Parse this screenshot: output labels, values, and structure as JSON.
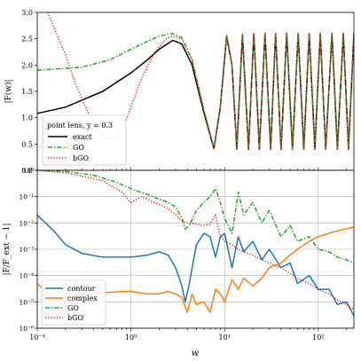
{
  "chart_data": [
    {
      "type": "line",
      "panel": "top",
      "xlabel": "",
      "ylabel": "|F(w)|",
      "x_scale": "log",
      "xlim": [
        0.1,
        240
      ],
      "ylim": [
        0.0,
        3.0
      ],
      "y_ticks": [
        0.0,
        0.5,
        1.0,
        1.5,
        2.0,
        2.5,
        3.0
      ],
      "y_tick_labels": [
        "0.0",
        "0.5",
        "1.0",
        "1.5",
        "2.0",
        "2.5",
        "3.0"
      ],
      "grid": false,
      "legend": {
        "title": "point lens,     y = 0.3",
        "placement": "bottom-left"
      },
      "series": [
        {
          "name": "exact",
          "color": "#000000",
          "style": "solid",
          "x": [
            0.1,
            0.2,
            0.5,
            1.0,
            1.5,
            2.0,
            2.8,
            3.5,
            4.5,
            6.0,
            7.7,
            9.0,
            10.5,
            12.0,
            13.5,
            15.5,
            18.0,
            20.5,
            23.5,
            27.0,
            31.0,
            35.0,
            40.0,
            46.0,
            53.0,
            61.0,
            70.0,
            80.0,
            92.0,
            105.0,
            120.0,
            140.0,
            160.0,
            185.0,
            210.0,
            240.0
          ],
          "y": [
            1.08,
            1.2,
            1.5,
            1.85,
            2.1,
            2.3,
            2.47,
            2.4,
            2.0,
            1.1,
            0.41,
            1.2,
            2.55,
            2.0,
            0.4,
            2.58,
            0.4,
            2.6,
            0.4,
            2.6,
            0.4,
            2.6,
            0.4,
            2.6,
            0.4,
            2.6,
            0.4,
            2.6,
            0.4,
            2.6,
            0.4,
            2.6,
            0.4,
            2.6,
            0.4,
            2.6
          ]
        },
        {
          "name": "GO",
          "color": "#2ca02c",
          "style": "dashdot",
          "x": [
            0.1,
            0.3,
            0.6,
            1.0,
            1.5,
            2.0,
            2.8,
            3.5,
            4.5,
            6.0,
            7.7,
            9.0,
            10.5,
            12.0,
            13.5,
            15.5,
            18.0,
            20.5,
            23.5,
            27.0,
            31.0,
            35.0,
            40.0,
            46.0,
            53.0,
            61.0,
            70.0,
            80.0,
            92.0,
            105.0,
            120.0,
            140.0,
            160.0,
            185.0,
            210.0,
            240.0
          ],
          "y": [
            1.9,
            1.96,
            2.1,
            2.3,
            2.45,
            2.55,
            2.6,
            2.52,
            2.1,
            1.15,
            0.42,
            1.22,
            2.56,
            2.0,
            0.4,
            2.58,
            0.4,
            2.6,
            0.4,
            2.6,
            0.4,
            2.6,
            0.4,
            2.6,
            0.4,
            2.6,
            0.4,
            2.6,
            0.4,
            2.6,
            0.4,
            2.6,
            0.4,
            2.6,
            0.4,
            2.6
          ]
        },
        {
          "name": "bGO",
          "color": "#d62728",
          "style": "dotted",
          "x": [
            0.13,
            0.16,
            0.2,
            0.25,
            0.3,
            0.37,
            0.45,
            0.55,
            0.7,
            0.85,
            1.0,
            1.3,
            1.8,
            2.4,
            2.8,
            3.5,
            4.5,
            6.0,
            7.7,
            9.0,
            10.5,
            12.0,
            13.5,
            15.5,
            18.0,
            20.5,
            23.5,
            27.0,
            31.0,
            35.0,
            40.0,
            46.0,
            53.0,
            61.0,
            70.0,
            80.0,
            92.0,
            105.0,
            120.0,
            140.0,
            160.0,
            185.0,
            210.0,
            240.0
          ],
          "y": [
            3.0,
            2.6,
            2.2,
            1.7,
            1.35,
            1.0,
            0.75,
            0.6,
            0.62,
            0.85,
            1.2,
            1.75,
            2.25,
            2.5,
            2.55,
            2.5,
            2.1,
            1.15,
            0.42,
            1.22,
            2.56,
            2.0,
            0.4,
            2.58,
            0.4,
            2.6,
            0.4,
            2.6,
            0.4,
            2.6,
            0.4,
            2.6,
            0.4,
            2.6,
            0.4,
            2.6,
            0.4,
            2.6,
            0.4,
            2.6,
            0.4,
            2.6,
            0.4,
            2.6
          ]
        }
      ]
    },
    {
      "type": "line",
      "panel": "bottom",
      "xlabel": "w",
      "ylabel": "|F/F_ext − 1|",
      "x_scale": "log",
      "y_scale": "log",
      "xlim": [
        0.1,
        240
      ],
      "ylim": [
        1e-06,
        1.0
      ],
      "x_tick_labels": [
        "10⁻¹",
        "10⁰",
        "10¹",
        "10²"
      ],
      "y_tick_labels": [
        "10⁻⁶",
        "10⁻⁵",
        "10⁻⁴",
        "10⁻³",
        "10⁻²",
        "10⁻¹",
        "10⁰"
      ],
      "y_ticks_exponent": [
        -6,
        -5,
        -4,
        -3,
        -2,
        -1,
        0
      ],
      "grid": true,
      "legend": {
        "placement": "bottom-left"
      },
      "series": [
        {
          "name": "contour",
          "color": "#1f77b4",
          "style": "solid",
          "x": [
            0.1,
            0.15,
            0.2,
            0.3,
            0.5,
            0.8,
            1.0,
            1.5,
            2.0,
            2.5,
            3.0,
            3.5,
            3.8,
            4.2,
            5.0,
            6.0,
            7.0,
            8.0,
            9.0,
            10.0,
            12.0,
            14.0,
            16.0,
            20.0,
            25.0,
            30.0,
            40.0,
            50.0,
            60.0,
            80.0,
            100.0,
            130.0,
            160.0,
            200.0,
            240.0
          ],
          "y": [
            0.02,
            0.005,
            0.0015,
            0.0007,
            0.0005,
            0.0005,
            0.0005,
            0.0006,
            0.0008,
            0.0006,
            0.0002,
            4e-05,
            1e-05,
            5e-05,
            0.0015,
            0.004,
            0.003,
            0.0005,
            0.003,
            0.004,
            0.0002,
            0.003,
            0.0008,
            0.002,
            0.0004,
            0.001,
            0.0002,
            0.0003,
            5e-05,
            0.0001,
            3e-05,
            3e-05,
            8e-06,
            1e-05,
            3e-06
          ]
        },
        {
          "name": "complex",
          "color": "#ff7f0e",
          "style": "solid",
          "x": [
            0.1,
            0.15,
            0.2,
            0.3,
            0.5,
            0.8,
            1.0,
            1.5,
            2.0,
            2.5,
            3.0,
            3.5,
            4.0,
            4.5,
            5.0,
            6.0,
            7.0,
            8.0,
            9.0,
            10.0,
            12.0,
            14.0,
            16.0,
            20.0,
            25.0,
            30.0,
            40.0,
            50.0,
            60.0,
            80.0,
            100.0,
            130.0,
            160.0,
            200.0,
            240.0
          ],
          "y": [
            5e-05,
            1.2e-05,
            1.5e-05,
            1.8e-05,
            2.2e-05,
            2.5e-05,
            2.5e-05,
            2e-05,
            2e-05,
            2.5e-05,
            2e-05,
            1.5e-05,
            4e-06,
            2e-05,
            8e-06,
            1e-05,
            4e-06,
            3e-05,
            2e-05,
            1e-05,
            7e-05,
            3e-05,
            8e-05,
            4e-05,
            8e-05,
            0.0002,
            0.0003,
            0.0006,
            0.001,
            0.002,
            0.003,
            0.004,
            0.005,
            0.006,
            0.007
          ]
        },
        {
          "name": "GO",
          "color": "#2ca02c",
          "style": "dashdot",
          "x": [
            0.1,
            0.2,
            0.4,
            0.7,
            1.0,
            1.5,
            2.0,
            2.5,
            3.0,
            3.5,
            3.8,
            4.2,
            5.0,
            6.0,
            7.0,
            8.0,
            9.0,
            10.0,
            12.0,
            14.0,
            16.0,
            20.0,
            25.0,
            30.0,
            40.0,
            50.0,
            60.0,
            80.0,
            100.0,
            130.0,
            160.0,
            200.0,
            240.0
          ],
          "y": [
            1.0,
            0.9,
            0.65,
            0.35,
            0.2,
            0.12,
            0.08,
            0.06,
            0.04,
            0.015,
            0.006,
            0.008,
            0.03,
            0.06,
            0.1,
            0.2,
            0.06,
            0.015,
            0.004,
            0.15,
            0.02,
            0.06,
            0.01,
            0.03,
            0.003,
            0.008,
            0.002,
            0.003,
            0.001,
            0.0008,
            0.0005,
            0.0004,
            0.0003
          ]
        },
        {
          "name": "bGO",
          "color": "#d62728",
          "style": "dotted",
          "x": [
            0.1,
            0.2,
            0.3,
            0.5,
            0.8,
            1.0,
            1.3,
            1.5,
            2.0,
            2.5,
            3.0,
            3.5,
            4.0,
            5.0,
            6.0,
            7.0,
            8.0,
            9.0,
            10.0,
            12.0,
            14.0,
            16.0,
            20.0,
            25.0,
            30.0,
            40.0,
            50.0,
            60.0,
            80.0,
            100.0,
            130.0,
            160.0,
            200.0,
            240.0
          ],
          "y": [
            1.0,
            0.8,
            0.6,
            0.4,
            0.15,
            0.06,
            0.1,
            0.08,
            0.05,
            0.035,
            0.02,
            0.012,
            0.01,
            0.009,
            0.008,
            0.009,
            0.02,
            0.003,
            0.002,
            0.0015,
            0.001,
            0.0008,
            0.0006,
            0.0004,
            0.0003,
            0.0002,
            0.00012,
            8e-05,
            5e-05,
            3e-05,
            2e-05,
            1.2e-05,
            8e-06,
            5e-06
          ]
        }
      ]
    }
  ]
}
